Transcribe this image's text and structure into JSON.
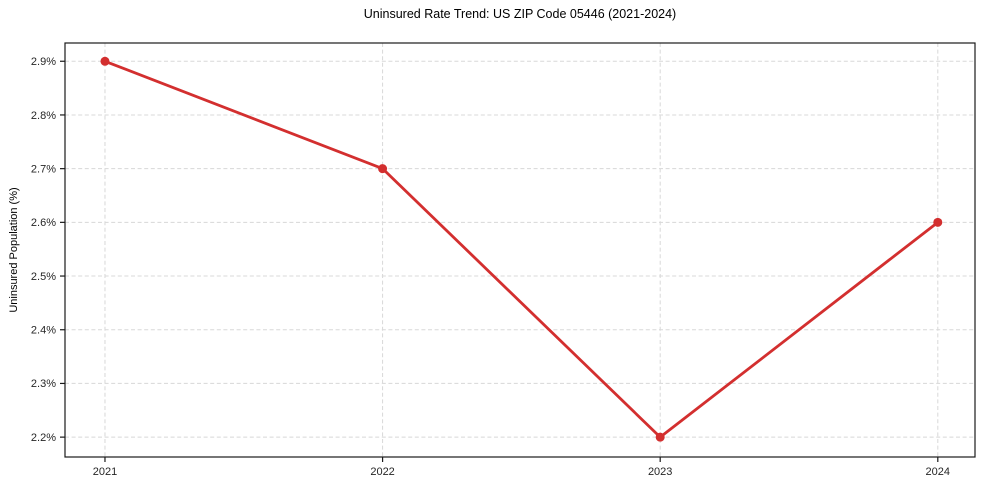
{
  "chart_data": {
    "type": "line",
    "title": "Uninsured Rate Trend: US ZIP Code 05446 (2021-2024)",
    "xlabel": "",
    "ylabel": "Uninsured Population (%)",
    "x": [
      2021,
      2022,
      2023,
      2024
    ],
    "values": [
      2.9,
      2.7,
      2.2,
      2.6
    ],
    "xticks": {
      "values": [
        2021,
        2022,
        2023,
        2024
      ],
      "labels": [
        "2021",
        "2022",
        "2023",
        "2024"
      ]
    },
    "yticks": {
      "values": [
        2.2,
        2.3,
        2.4,
        2.5,
        2.6,
        2.7,
        2.8,
        2.9
      ],
      "labels": [
        "2.2%",
        "2.3%",
        "2.4%",
        "2.5%",
        "2.6%",
        "2.7%",
        "2.8%",
        "2.9%"
      ]
    },
    "xlim": [
      2020.856,
      2024.134
    ],
    "ylim": [
      2.163,
      2.934
    ],
    "grid": true,
    "legend": "none",
    "marker": "circle",
    "colors": {
      "line": "#d32f2f",
      "marker": "#d32f2f",
      "grid": "#d8d8d8",
      "spine": "#1a1a1a",
      "tick_text": "#262626",
      "background": "#ffffff"
    }
  }
}
